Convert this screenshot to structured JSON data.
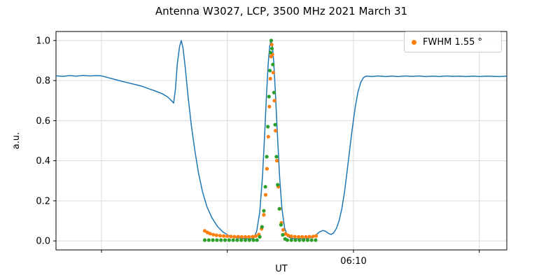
{
  "chart_data": {
    "type": "line+scatter",
    "title": "Antenna W3027, LCP, 3500 MHz 2021 March 31",
    "xlabel": "UT",
    "ylabel": "a.u.",
    "ylim": [
      -0.045,
      1.045
    ],
    "y_ticks": [
      0.0,
      0.2,
      0.4,
      0.6,
      0.8,
      1.0
    ],
    "x_ticks": [
      {
        "pos": 0.101,
        "label": ""
      },
      {
        "pos": 0.38,
        "label": ""
      },
      {
        "pos": 0.66,
        "label": "06:10"
      },
      {
        "pos": 0.939,
        "label": ""
      }
    ],
    "grid": true,
    "legend": {
      "labels": [
        "FWHM 1.55 °"
      ],
      "position": "upper right"
    },
    "colors": {
      "line": "#1f77b4",
      "data_markers": "#ff7f0e",
      "fit_markers": "#2ca02c",
      "grid": "#d9d9d9",
      "axes": "#000000"
    },
    "series": [
      {
        "name": "series-blue-line",
        "type": "line",
        "color": "#1f77b4",
        "x": [
          0.0,
          0.015,
          0.03,
          0.045,
          0.06,
          0.075,
          0.09,
          0.1,
          0.115,
          0.13,
          0.145,
          0.16,
          0.175,
          0.19,
          0.205,
          0.22,
          0.235,
          0.248,
          0.256,
          0.261,
          0.265,
          0.269,
          0.274,
          0.278,
          0.282,
          0.287,
          0.293,
          0.3,
          0.308,
          0.316,
          0.325,
          0.335,
          0.346,
          0.358,
          0.37,
          0.382,
          0.395,
          0.41,
          0.425,
          0.438,
          0.445,
          0.452,
          0.458,
          0.463,
          0.467,
          0.471,
          0.474,
          0.477,
          0.48,
          0.483,
          0.487,
          0.491,
          0.496,
          0.501,
          0.507,
          0.514,
          0.522,
          0.535,
          0.548,
          0.56,
          0.57,
          0.578,
          0.585,
          0.592,
          0.598,
          0.604,
          0.61,
          0.616,
          0.622,
          0.628,
          0.634,
          0.64,
          0.646,
          0.652,
          0.658,
          0.664,
          0.67,
          0.676,
          0.682,
          0.688,
          0.7,
          0.715,
          0.73,
          0.745,
          0.76,
          0.775,
          0.79,
          0.805,
          0.82,
          0.835,
          0.85,
          0.865,
          0.88,
          0.895,
          0.91,
          0.925,
          0.94,
          0.955,
          0.97,
          0.985,
          1.0
        ],
        "y": [
          0.824,
          0.821,
          0.825,
          0.822,
          0.826,
          0.823,
          0.825,
          0.824,
          0.815,
          0.806,
          0.797,
          0.789,
          0.781,
          0.772,
          0.76,
          0.748,
          0.735,
          0.718,
          0.7,
          0.688,
          0.76,
          0.88,
          0.97,
          1.0,
          0.96,
          0.86,
          0.72,
          0.58,
          0.45,
          0.34,
          0.245,
          0.17,
          0.115,
          0.072,
          0.045,
          0.028,
          0.018,
          0.013,
          0.011,
          0.011,
          0.047,
          0.144,
          0.322,
          0.539,
          0.729,
          0.892,
          0.972,
          1.0,
          0.972,
          0.892,
          0.729,
          0.539,
          0.322,
          0.167,
          0.065,
          0.022,
          0.013,
          0.011,
          0.011,
          0.013,
          0.02,
          0.032,
          0.045,
          0.052,
          0.048,
          0.038,
          0.032,
          0.04,
          0.062,
          0.1,
          0.16,
          0.245,
          0.35,
          0.465,
          0.575,
          0.67,
          0.745,
          0.79,
          0.815,
          0.822,
          0.82,
          0.823,
          0.82,
          0.822,
          0.82,
          0.823,
          0.821,
          0.823,
          0.82,
          0.822,
          0.82,
          0.823,
          0.821,
          0.822,
          0.82,
          0.822,
          0.82,
          0.822,
          0.821,
          0.82,
          0.822
        ]
      },
      {
        "name": "series-orange-markers",
        "legend_label": "FWHM 1.55 °",
        "type": "scatter",
        "color": "#ff7f0e",
        "x": [
          0.33,
          0.336,
          0.342,
          0.349,
          0.356,
          0.364,
          0.372,
          0.38,
          0.388,
          0.396,
          0.404,
          0.412,
          0.42,
          0.428,
          0.436,
          0.443,
          0.45,
          0.456,
          0.461,
          0.465,
          0.468,
          0.471,
          0.4735,
          0.4755,
          0.477,
          0.4785,
          0.48,
          0.482,
          0.4845,
          0.487,
          0.49,
          0.493,
          0.4965,
          0.5,
          0.504,
          0.509,
          0.515,
          0.522,
          0.53,
          0.538,
          0.546,
          0.554,
          0.562,
          0.57,
          0.577
        ],
        "y": [
          0.05,
          0.042,
          0.036,
          0.031,
          0.028,
          0.026,
          0.024,
          0.023,
          0.022,
          0.021,
          0.021,
          0.02,
          0.02,
          0.02,
          0.021,
          0.024,
          0.032,
          0.06,
          0.13,
          0.23,
          0.36,
          0.52,
          0.67,
          0.81,
          0.92,
          0.98,
          0.93,
          0.84,
          0.7,
          0.55,
          0.4,
          0.27,
          0.16,
          0.09,
          0.055,
          0.035,
          0.027,
          0.023,
          0.021,
          0.02,
          0.02,
          0.02,
          0.021,
          0.022,
          0.025
        ]
      },
      {
        "name": "series-green-markers",
        "type": "scatter",
        "color": "#2ca02c",
        "x": [
          0.33,
          0.339,
          0.348,
          0.357,
          0.366,
          0.375,
          0.384,
          0.393,
          0.402,
          0.411,
          0.42,
          0.429,
          0.438,
          0.446,
          0.452,
          0.457,
          0.461,
          0.4645,
          0.4675,
          0.47,
          0.4725,
          0.4745,
          0.476,
          0.4775,
          0.479,
          0.481,
          0.4835,
          0.486,
          0.489,
          0.492,
          0.4955,
          0.499,
          0.503,
          0.508,
          0.513,
          0.522,
          0.531,
          0.54,
          0.549,
          0.558,
          0.567,
          0.576
        ],
        "y": [
          0.004,
          0.004,
          0.004,
          0.004,
          0.004,
          0.004,
          0.004,
          0.004,
          0.004,
          0.004,
          0.004,
          0.004,
          0.004,
          0.004,
          0.02,
          0.07,
          0.15,
          0.27,
          0.42,
          0.57,
          0.72,
          0.85,
          0.94,
          1.0,
          0.96,
          0.88,
          0.74,
          0.58,
          0.42,
          0.28,
          0.16,
          0.08,
          0.03,
          0.01,
          0.004,
          0.004,
          0.004,
          0.004,
          0.004,
          0.004,
          0.004,
          0.004
        ]
      }
    ]
  }
}
